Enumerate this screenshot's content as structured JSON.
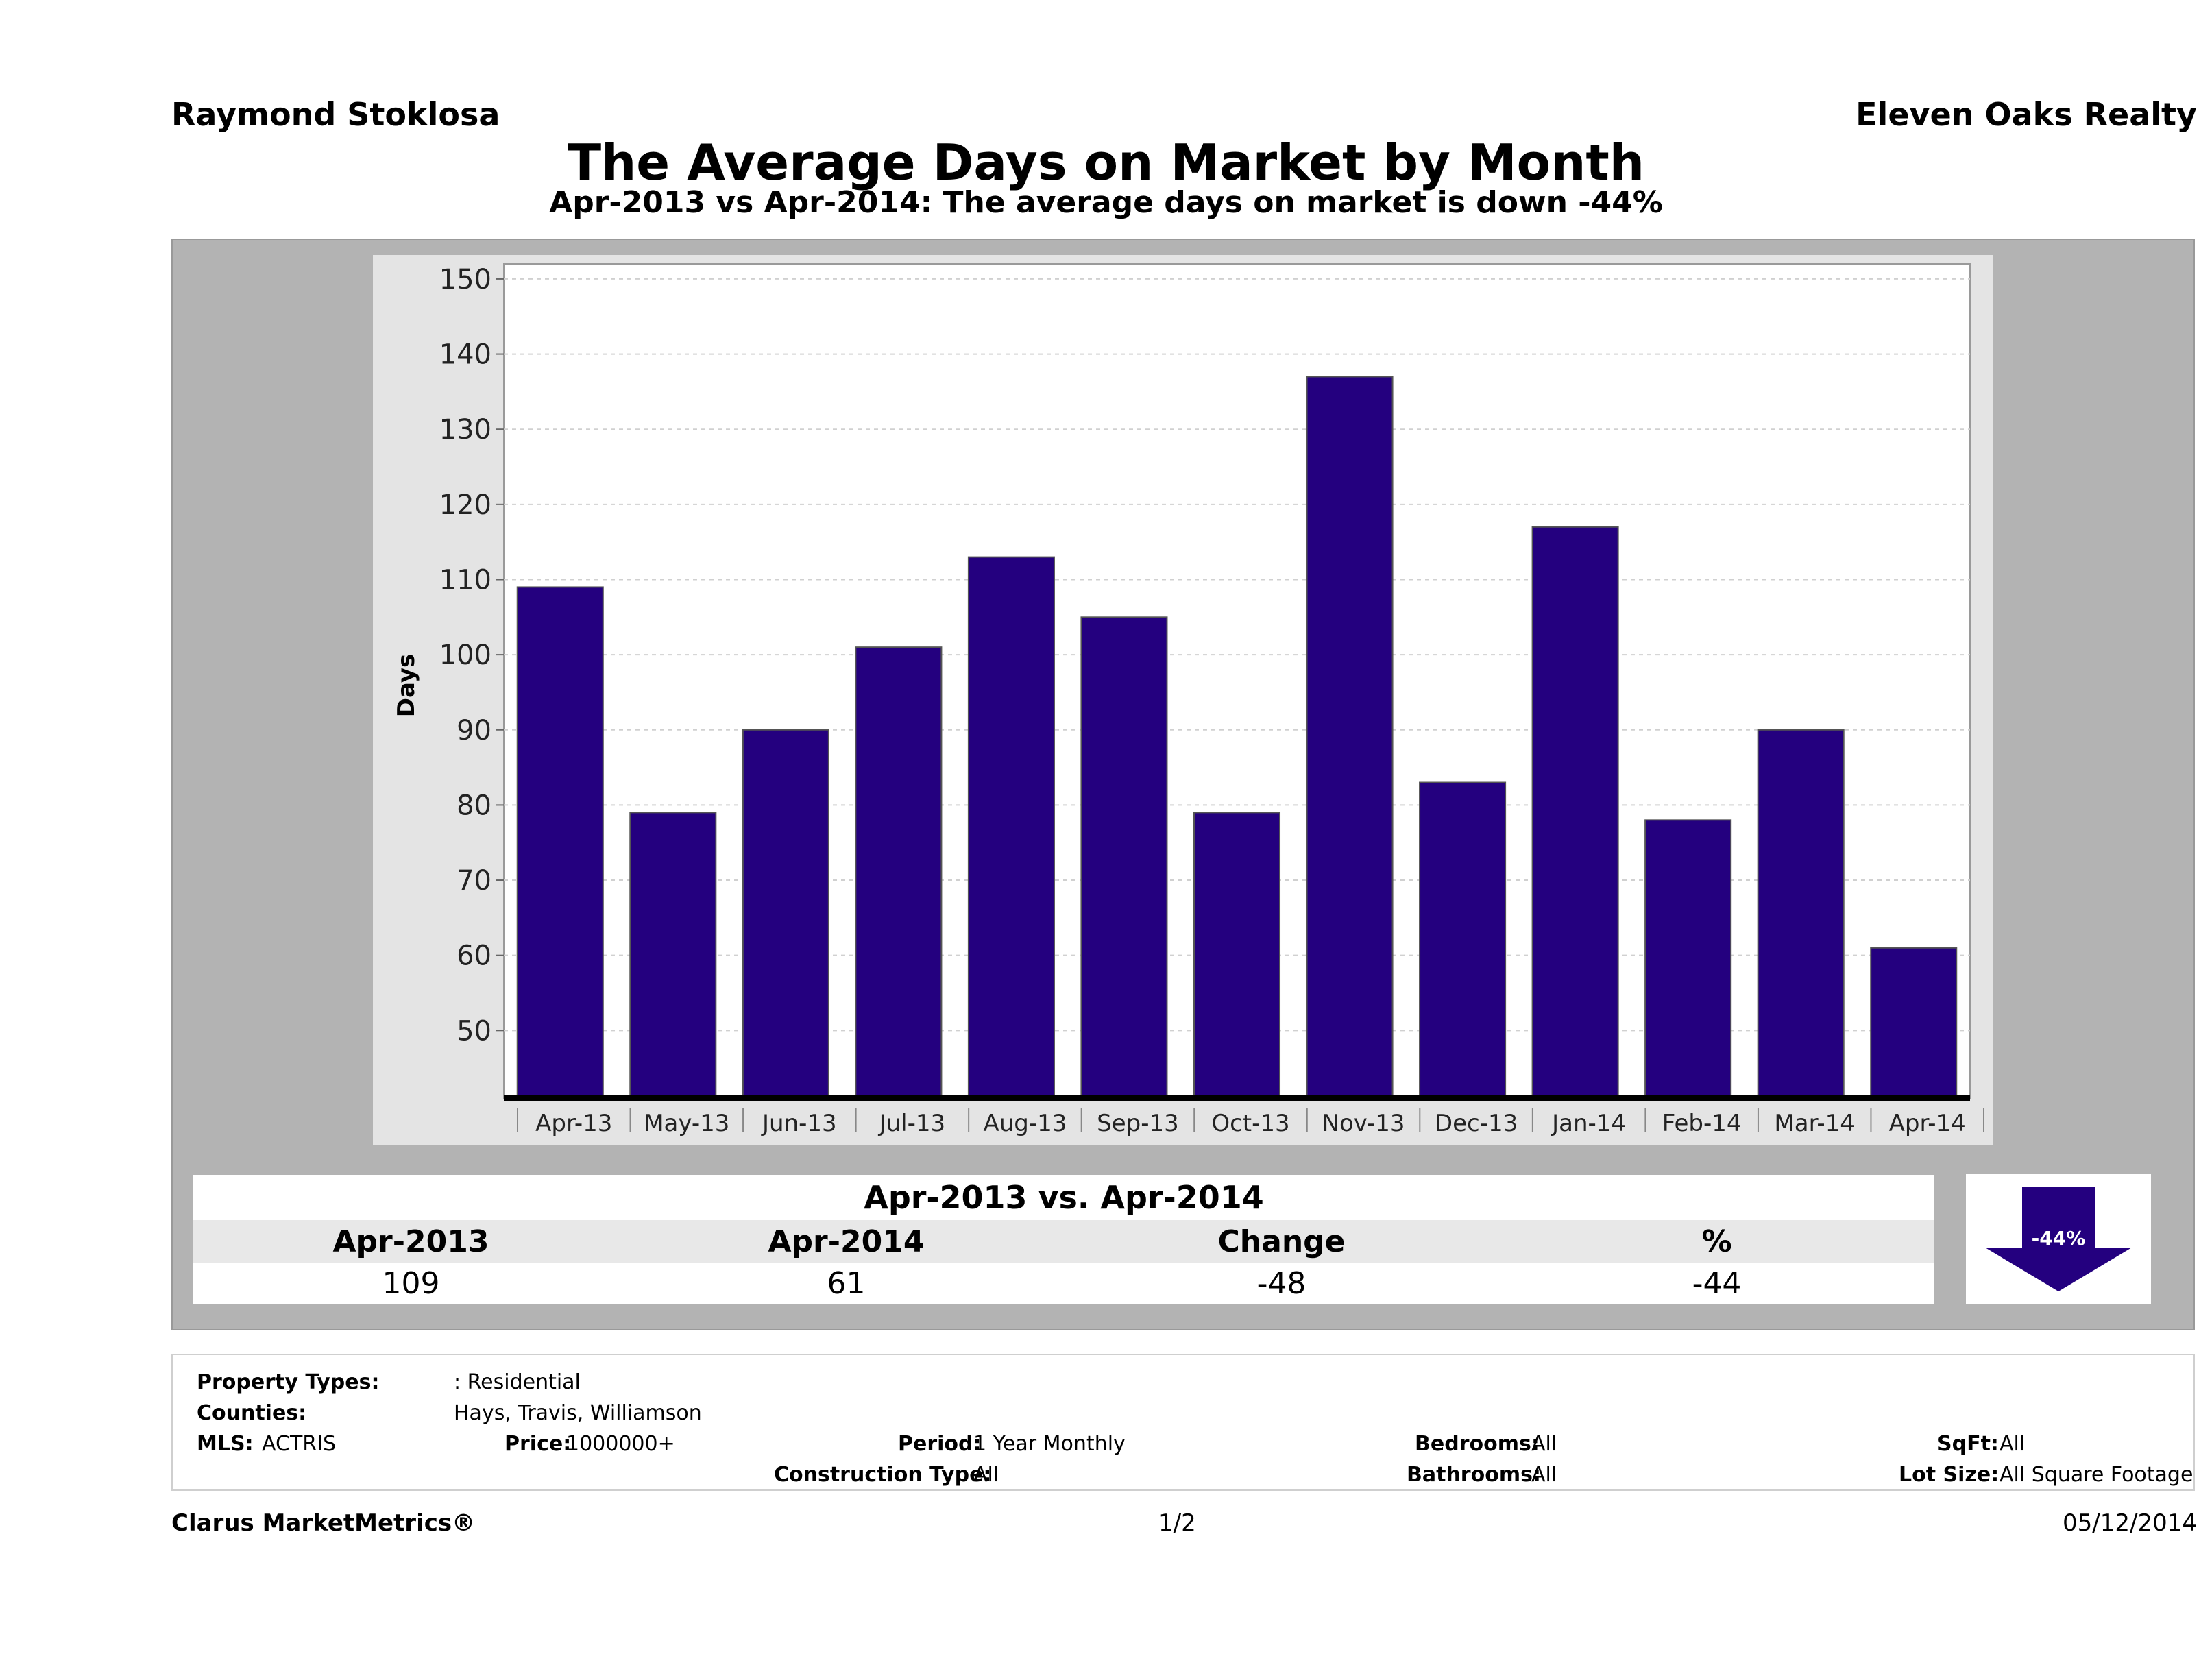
{
  "header": {
    "agent": "Raymond Stoklosa",
    "company": "Eleven Oaks Realty",
    "title": "The Average Days on Market by Month",
    "subtitle": "Apr-2013 vs Apr-2014: The average days on market is down -44%"
  },
  "chart_data": {
    "type": "bar",
    "categories": [
      "Apr-13",
      "May-13",
      "Jun-13",
      "Jul-13",
      "Aug-13",
      "Sep-13",
      "Oct-13",
      "Nov-13",
      "Dec-13",
      "Jan-14",
      "Feb-14",
      "Mar-14",
      "Apr-14"
    ],
    "values": [
      109,
      79,
      90,
      101,
      113,
      105,
      79,
      137,
      83,
      117,
      78,
      90,
      61
    ],
    "ylabel": "Days",
    "xlabel": "",
    "ylim": [
      41,
      152
    ],
    "yticks": [
      50,
      60,
      70,
      80,
      90,
      100,
      110,
      120,
      130,
      140,
      150
    ],
    "grid": true,
    "bar_color": "#24007f"
  },
  "summary": {
    "title": "Apr-2013 vs. Apr-2014",
    "headers": [
      "Apr-2013",
      "Apr-2014",
      "Change",
      "%"
    ],
    "values": [
      "109",
      "61",
      "-48",
      "-44"
    ],
    "badge_label": "-44%",
    "badge_color": "#24007f"
  },
  "info": {
    "property_types_label": "Property Types:",
    "property_types_value": ": Residential",
    "counties_label": "Counties:",
    "counties_value": "Hays, Travis, Williamson",
    "mls_label": "MLS:",
    "mls_value": "ACTRIS",
    "price_label": "Price:",
    "price_value": "1000000+",
    "period_label": "Period:",
    "period_value": "1 Year Monthly",
    "construction_label": "Construction Type:",
    "construction_value": "All",
    "bedrooms_label": "Bedrooms:",
    "bedrooms_value": "All",
    "bathrooms_label": "Bathrooms:",
    "bathrooms_value": "All",
    "sqft_label": "SqFt:",
    "sqft_value": "All",
    "lotsize_label": "Lot Size:",
    "lotsize_value": "All Square Footage"
  },
  "footer": {
    "brand": "Clarus MarketMetrics®",
    "page": "1/2",
    "date": "05/12/2014"
  }
}
